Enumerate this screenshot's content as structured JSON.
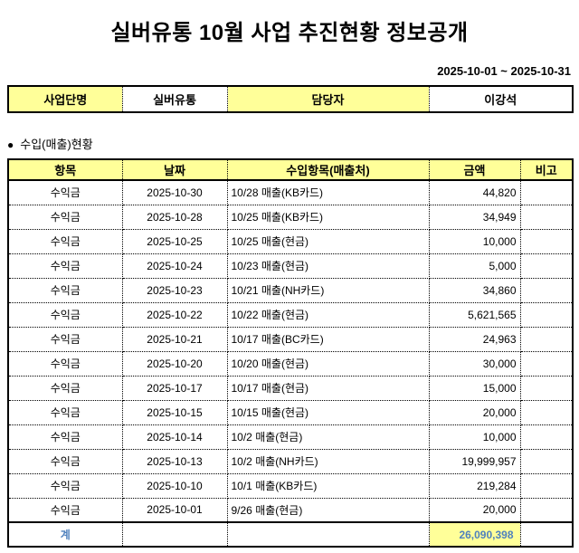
{
  "page": {
    "title": "실버유통 10월 사업 추진현황 정보공개",
    "date_range": "2025-10-01 ~ 2025-10-31",
    "section_bullet": "●",
    "section_title": "수입(매출)현황"
  },
  "info_table": {
    "cells": [
      {
        "label": "사업단명",
        "value": "실버유통"
      },
      {
        "label": "담당자",
        "value": "이강석"
      }
    ]
  },
  "sales_table": {
    "headers": [
      "항목",
      "날짜",
      "수입항목(매출처)",
      "금액",
      "비고"
    ],
    "rows": [
      {
        "item": "수익금",
        "date": "2025-10-30",
        "source": "10/28 매출(KB카드)",
        "amount": "44,820",
        "note": ""
      },
      {
        "item": "수익금",
        "date": "2025-10-28",
        "source": "10/25 매출(KB카드)",
        "amount": "34,949",
        "note": ""
      },
      {
        "item": "수익금",
        "date": "2025-10-25",
        "source": "10/25 매출(현금)",
        "amount": "10,000",
        "note": ""
      },
      {
        "item": "수익금",
        "date": "2025-10-24",
        "source": "10/23 매출(현금)",
        "amount": "5,000",
        "note": ""
      },
      {
        "item": "수익금",
        "date": "2025-10-23",
        "source": "10/21 매출(NH카드)",
        "amount": "34,860",
        "note": ""
      },
      {
        "item": "수익금",
        "date": "2025-10-22",
        "source": "10/22 매출(현금)",
        "amount": "5,621,565",
        "note": ""
      },
      {
        "item": "수익금",
        "date": "2025-10-21",
        "source": "10/17 매출(BC카드)",
        "amount": "24,963",
        "note": ""
      },
      {
        "item": "수익금",
        "date": "2025-10-20",
        "source": "10/20 매출(현금)",
        "amount": "30,000",
        "note": ""
      },
      {
        "item": "수익금",
        "date": "2025-10-17",
        "source": "10/17 매출(현금)",
        "amount": "15,000",
        "note": ""
      },
      {
        "item": "수익금",
        "date": "2025-10-15",
        "source": "10/15 매출(현금)",
        "amount": "20,000",
        "note": ""
      },
      {
        "item": "수익금",
        "date": "2025-10-14",
        "source": "10/2 매출(현금)",
        "amount": "10,000",
        "note": ""
      },
      {
        "item": "수익금",
        "date": "2025-10-13",
        "source": "10/2 매출(NH카드)",
        "amount": "19,999,957",
        "note": ""
      },
      {
        "item": "수익금",
        "date": "2025-10-10",
        "source": "10/1 매출(KB카드)",
        "amount": "219,284",
        "note": ""
      },
      {
        "item": "수익금",
        "date": "2025-10-01",
        "source": "9/26 매출(현금)",
        "amount": "20,000",
        "note": ""
      }
    ],
    "total": {
      "label": "계",
      "amount": "26,090,398"
    }
  },
  "colors": {
    "highlight": "#ffff99",
    "total_text": "#4f81bd",
    "border": "#000000"
  }
}
